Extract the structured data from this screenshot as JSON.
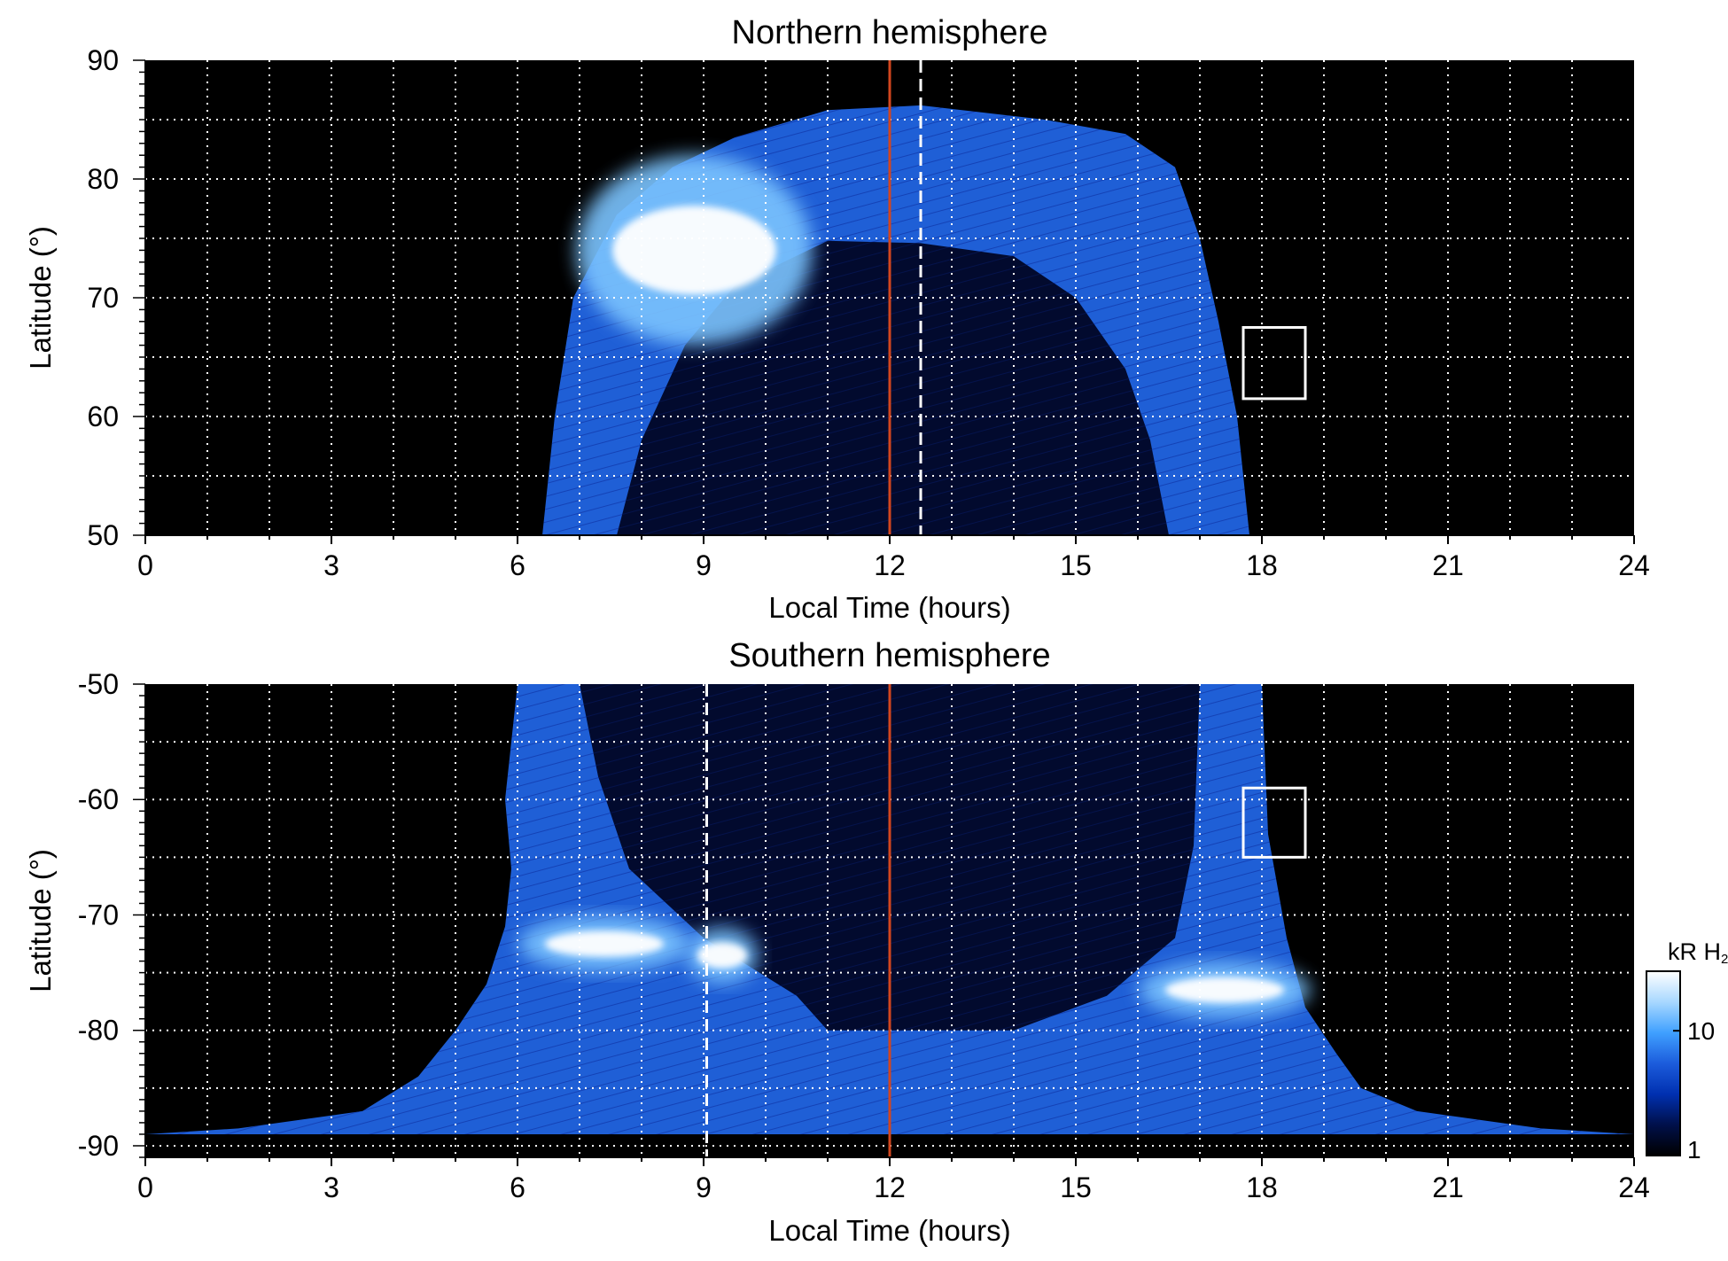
{
  "chart_data": [
    {
      "type": "heatmap",
      "title": "Northern hemisphere",
      "xlabel": "Local Time (hours)",
      "ylabel": "Latitude (°)",
      "xlim": [
        0,
        24
      ],
      "ylim": [
        50,
        90
      ],
      "xticks": [
        "0",
        "3",
        "6",
        "9",
        "12",
        "15",
        "18",
        "21",
        "24"
      ],
      "yticks": [
        "50",
        "60",
        "70",
        "80",
        "90"
      ],
      "grid": true,
      "colorscale": "log, black–blue–white",
      "reference_lines": [
        {
          "style": "solid",
          "color": "#d2461e",
          "x": 12
        },
        {
          "style": "dashed",
          "color": "#ffffff",
          "x": 12.5
        }
      ],
      "highlight_box": {
        "x": [
          17.7,
          18.7
        ],
        "y": [
          61.5,
          67.5
        ]
      },
      "emission_arc": {
        "outer_boundary": [
          [
            6.4,
            50
          ],
          [
            6.6,
            60
          ],
          [
            6.9,
            70
          ],
          [
            7.6,
            77
          ],
          [
            8.5,
            81
          ],
          [
            9.5,
            83.5
          ],
          [
            11,
            85.8
          ],
          [
            12.5,
            86.2
          ],
          [
            14.5,
            85
          ],
          [
            15.8,
            83.8
          ],
          [
            16.6,
            81
          ],
          [
            17,
            75
          ],
          [
            17.3,
            68
          ],
          [
            17.6,
            60
          ],
          [
            17.8,
            50
          ]
        ],
        "inner_boundary": [
          [
            7.6,
            50
          ],
          [
            8,
            58
          ],
          [
            8.7,
            66
          ],
          [
            9.5,
            71
          ],
          [
            11,
            74.8
          ],
          [
            12.5,
            74.6
          ],
          [
            14,
            73.5
          ],
          [
            15,
            70
          ],
          [
            15.8,
            64
          ],
          [
            16.2,
            58
          ],
          [
            16.5,
            50
          ]
        ],
        "brightest_region": {
          "x": [
            7.2,
            10.5
          ],
          "y": [
            69,
            79
          ]
        }
      }
    },
    {
      "type": "heatmap",
      "title": "Southern hemisphere",
      "xlabel": "Local Time (hours)",
      "ylabel": "Latitude (°)",
      "xlim": [
        0,
        24
      ],
      "ylim": [
        -91,
        -50
      ],
      "xticks": [
        "0",
        "3",
        "6",
        "9",
        "12",
        "15",
        "18",
        "21",
        "24"
      ],
      "yticks": [
        "-50",
        "-60",
        "-70",
        "-80",
        "-90"
      ],
      "grid": true,
      "colorscale": "log, black–blue–white",
      "reference_lines": [
        {
          "style": "solid",
          "color": "#d2461e",
          "x": 12
        },
        {
          "style": "dashed",
          "color": "#ffffff",
          "x": 9.05
        }
      ],
      "highlight_box": {
        "x": [
          17.7,
          18.7
        ],
        "y": [
          -65,
          -59
        ]
      },
      "emission_arc": {
        "outer_boundary": [
          [
            6,
            -50
          ],
          [
            5.8,
            -60
          ],
          [
            5.9,
            -66
          ],
          [
            5.8,
            -71
          ],
          [
            5.5,
            -76
          ],
          [
            5,
            -80
          ],
          [
            4.4,
            -84
          ],
          [
            3.5,
            -87
          ],
          [
            1.5,
            -88.5
          ],
          [
            0,
            -89
          ],
          [
            24,
            -89
          ],
          [
            22.5,
            -88.5
          ],
          [
            20.5,
            -87
          ],
          [
            19.6,
            -85
          ],
          [
            19.2,
            -82
          ],
          [
            18.7,
            -78
          ],
          [
            18.4,
            -72
          ],
          [
            18.1,
            -63
          ],
          [
            18,
            -50
          ]
        ],
        "inner_boundary": [
          [
            7,
            -50
          ],
          [
            7.3,
            -58
          ],
          [
            7.8,
            -66
          ],
          [
            9,
            -72
          ],
          [
            10.5,
            -77
          ],
          [
            11,
            -80
          ],
          [
            14,
            -80
          ],
          [
            15.5,
            -77
          ],
          [
            16.6,
            -72
          ],
          [
            16.9,
            -64
          ],
          [
            17,
            -50
          ]
        ],
        "bright_spots": [
          {
            "x": [
              6.2,
              8.6
            ],
            "y": [
              -71,
              -74
            ]
          },
          {
            "x": [
              8.8,
              9.8
            ],
            "y": [
              -72,
              -75
            ]
          },
          {
            "x": [
              16.2,
              18.6
            ],
            "y": [
              -75,
              -78
            ]
          }
        ]
      }
    }
  ],
  "colorbar": {
    "label_main": "kR H",
    "label_sub": "2",
    "scale": "log",
    "range": [
      1,
      30
    ],
    "ticks": [
      "1",
      "10"
    ],
    "colors": [
      "#000000",
      "#00104a",
      "#0030b0",
      "#1c5cdc",
      "#3fa0ff",
      "#a8d8ff",
      "#ffffff"
    ]
  }
}
